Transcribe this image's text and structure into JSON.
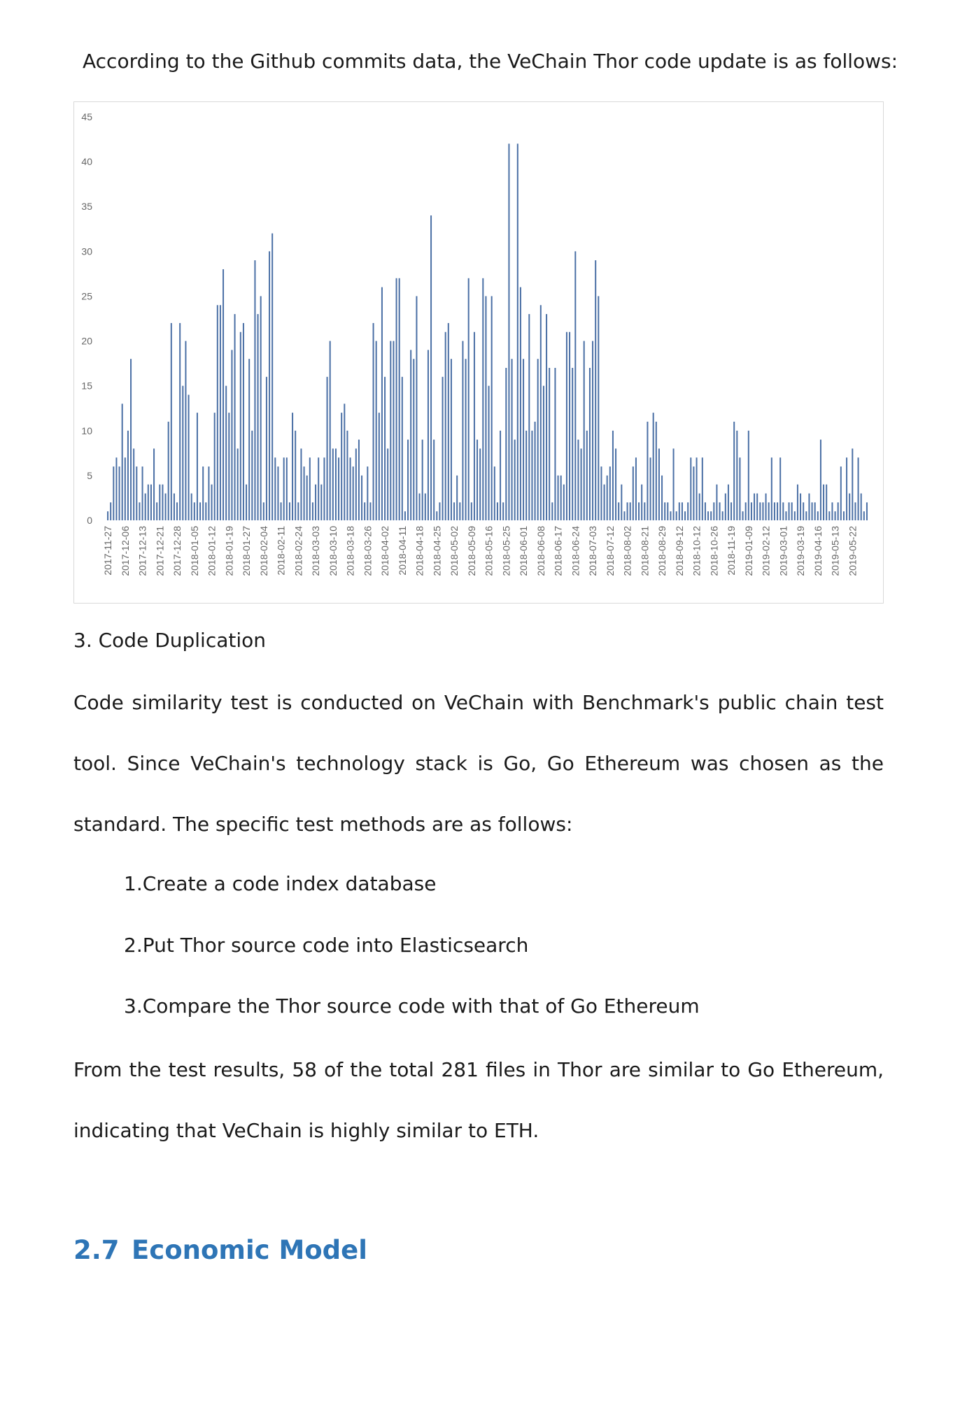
{
  "intro": "According to the Github commits data, the VeChain Thor code update is as follows:",
  "chart_data": {
    "type": "bar",
    "color": "#4a6fa5",
    "grid": false,
    "ylim": [
      0,
      45
    ],
    "yticks": [
      0,
      5,
      10,
      15,
      20,
      25,
      30,
      35,
      40,
      45
    ],
    "categories": [
      "2017-11-27",
      null,
      null,
      null,
      null,
      null,
      "2017-12-06",
      null,
      null,
      null,
      null,
      null,
      "2017-12-13",
      null,
      null,
      null,
      null,
      null,
      "2017-12-21",
      null,
      null,
      null,
      null,
      null,
      "2017-12-28",
      null,
      null,
      null,
      null,
      null,
      "2018-01-05",
      null,
      null,
      null,
      null,
      null,
      "2018-01-12",
      null,
      null,
      null,
      null,
      null,
      "2018-01-19",
      null,
      null,
      null,
      null,
      null,
      "2018-01-27",
      null,
      null,
      null,
      null,
      null,
      "2018-02-04",
      null,
      null,
      null,
      null,
      null,
      "2018-02-11",
      null,
      null,
      null,
      null,
      null,
      "2018-02-24",
      null,
      null,
      null,
      null,
      null,
      "2018-03-03",
      null,
      null,
      null,
      null,
      null,
      "2018-03-10",
      null,
      null,
      null,
      null,
      null,
      "2018-03-18",
      null,
      null,
      null,
      null,
      null,
      "2018-03-26",
      null,
      null,
      null,
      null,
      null,
      "2018-04-02",
      null,
      null,
      null,
      null,
      null,
      "2018-04-11",
      null,
      null,
      null,
      null,
      null,
      "2018-04-18",
      null,
      null,
      null,
      null,
      null,
      "2018-04-25",
      null,
      null,
      null,
      null,
      null,
      "2018-05-02",
      null,
      null,
      null,
      null,
      null,
      "2018-05-09",
      null,
      null,
      null,
      null,
      null,
      "2018-05-16",
      null,
      null,
      null,
      null,
      null,
      "2018-05-25",
      null,
      null,
      null,
      null,
      null,
      "2018-06-01",
      null,
      null,
      null,
      null,
      null,
      "2018-06-08",
      null,
      null,
      null,
      null,
      null,
      "2018-06-17",
      null,
      null,
      null,
      null,
      null,
      "2018-06-24",
      null,
      null,
      null,
      null,
      null,
      "2018-07-03",
      null,
      null,
      null,
      null,
      null,
      "2018-07-12",
      null,
      null,
      null,
      null,
      null,
      "2018-08-02",
      null,
      null,
      null,
      null,
      null,
      "2018-08-21",
      null,
      null,
      null,
      null,
      null,
      "2018-08-29",
      null,
      null,
      null,
      null,
      null,
      "2018-09-12",
      null,
      null,
      null,
      null,
      null,
      "2018-10-12",
      null,
      null,
      null,
      null,
      null,
      "2018-10-26",
      null,
      null,
      null,
      null,
      null,
      "2018-11-19",
      null,
      null,
      null,
      null,
      null,
      "2019-01-09",
      null,
      null,
      null,
      null,
      null,
      "2019-02-12",
      null,
      null,
      null,
      null,
      null,
      "2019-03-01",
      null,
      null,
      null,
      null,
      null,
      "2019-03-19",
      null,
      null,
      null,
      null,
      null,
      "2019-04-16",
      null,
      null,
      null,
      null,
      null,
      "2019-05-13",
      null,
      null,
      null,
      null,
      null,
      "2019-05-22",
      null,
      null,
      null,
      null,
      null
    ],
    "values": [
      1,
      2,
      6,
      7,
      6,
      13,
      7,
      10,
      18,
      8,
      6,
      2,
      6,
      3,
      4,
      4,
      8,
      2,
      4,
      4,
      3,
      11,
      22,
      3,
      2,
      22,
      15,
      20,
      14,
      3,
      2,
      12,
      2,
      6,
      2,
      6,
      4,
      12,
      24,
      24,
      28,
      15,
      12,
      19,
      23,
      8,
      21,
      22,
      4,
      18,
      10,
      29,
      23,
      25,
      2,
      16,
      30,
      32,
      7,
      6,
      2,
      7,
      7,
      2,
      12,
      10,
      2,
      8,
      6,
      5,
      7,
      2,
      4,
      7,
      4,
      7,
      16,
      20,
      8,
      8,
      7,
      12,
      13,
      10,
      7,
      6,
      8,
      9,
      5,
      2,
      6,
      2,
      22,
      20,
      12,
      26,
      16,
      8,
      20,
      20,
      27,
      27,
      16,
      1,
      9,
      19,
      18,
      25,
      3,
      9,
      3,
      19,
      34,
      9,
      1,
      2,
      16,
      21,
      22,
      18,
      2,
      5,
      2,
      20,
      18,
      27,
      2,
      21,
      9,
      8,
      27,
      25,
      15,
      25,
      6,
      2,
      10,
      2,
      17,
      42,
      18,
      9,
      42,
      26,
      18,
      10,
      23,
      10,
      11,
      18,
      24,
      15,
      23,
      17,
      2,
      17,
      5,
      5,
      4,
      21,
      21,
      17,
      30,
      9,
      8,
      20,
      10,
      17,
      20,
      29,
      25,
      6,
      4,
      5,
      6,
      10,
      8,
      2,
      4,
      1,
      2,
      2,
      6,
      7,
      2,
      4,
      2,
      11,
      7,
      12,
      11,
      8,
      5,
      2,
      2,
      1,
      8,
      1,
      2,
      2,
      1,
      2,
      7,
      6,
      7,
      3,
      7,
      2,
      1,
      1,
      2,
      4,
      2,
      1,
      3,
      4,
      2,
      11,
      10,
      7,
      1,
      2,
      10,
      2,
      3,
      3,
      2,
      2,
      3,
      2,
      7,
      2,
      2,
      7,
      2,
      1,
      2,
      2,
      1,
      4,
      3,
      2,
      1,
      3,
      2,
      2,
      1,
      9,
      4,
      4,
      1,
      2,
      1,
      2,
      6,
      1,
      7,
      3,
      8,
      2,
      7,
      3,
      1,
      2
    ]
  },
  "section": "3. Code Duplication",
  "paragraph_1": "Code similarity test is conducted on VeChain with Benchmark's public chain test tool. Since VeChain's technology stack is Go, Go Ethereum was chosen as the standard. The specific test methods are as follows:",
  "list": [
    "1.Create a code index database",
    "2.Put Thor source code into Elasticsearch",
    "3.Compare the Thor source code with that of Go Ethereum"
  ],
  "paragraph_2": "From the test results, 58 of the total 281 files in Thor are similar to Go Ethereum, indicating that VeChain is highly similar to ETH.",
  "heading": {
    "number": "2.7",
    "title": "Economic Model"
  }
}
